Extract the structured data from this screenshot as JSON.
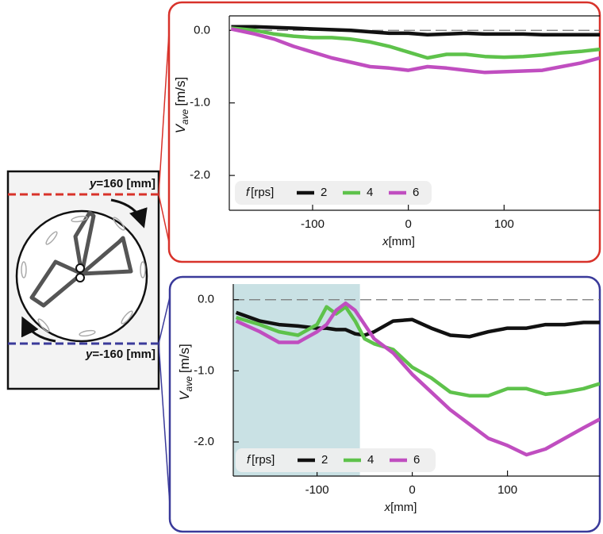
{
  "diagram": {
    "top_label": [
      "y",
      "=160 [mm]"
    ],
    "bottom_label": [
      "y",
      "=-160 [mm]"
    ]
  },
  "chart_data": [
    {
      "type": "line",
      "frame_color": "#d8322a",
      "ylabel": "V",
      "ylabel_sub": "ave",
      "ylabel_unit": "[m/s]",
      "xlabel": "x",
      "xlabel_unit": "[mm]",
      "legend_title": "f",
      "legend_unit": "[rps]",
      "x": [
        -185,
        -160,
        -140,
        -120,
        -100,
        -80,
        -60,
        -40,
        -20,
        0,
        20,
        40,
        60,
        80,
        100,
        120,
        140,
        160,
        180,
        200
      ],
      "series": [
        {
          "name": "2",
          "color": "#111111",
          "values": [
            0.05,
            0.05,
            0.04,
            0.03,
            0.02,
            0.01,
            0.0,
            -0.02,
            -0.04,
            -0.04,
            -0.06,
            -0.05,
            -0.04,
            -0.05,
            -0.05,
            -0.05,
            -0.06,
            -0.06,
            -0.06,
            -0.06
          ]
        },
        {
          "name": "4",
          "color": "#5ec24b",
          "values": [
            0.03,
            0.0,
            -0.05,
            -0.08,
            -0.1,
            -0.1,
            -0.12,
            -0.16,
            -0.22,
            -0.3,
            -0.38,
            -0.33,
            -0.33,
            -0.36,
            -0.37,
            -0.36,
            -0.34,
            -0.31,
            -0.29,
            -0.26
          ]
        },
        {
          "name": "6",
          "color": "#c04ec0",
          "values": [
            0.02,
            -0.05,
            -0.12,
            -0.22,
            -0.3,
            -0.38,
            -0.44,
            -0.5,
            -0.52,
            -0.55,
            -0.5,
            -0.52,
            -0.55,
            -0.58,
            -0.57,
            -0.56,
            -0.55,
            -0.5,
            -0.45,
            -0.38
          ]
        }
      ],
      "xlim": [
        -187,
        200
      ],
      "ylim": [
        -2.48,
        0.2
      ],
      "xticks": [
        -100,
        0,
        100
      ],
      "yticks": [
        {
          "value": 0,
          "label": "0.0"
        },
        {
          "value": -1,
          "label": "-1.0"
        },
        {
          "value": -2,
          "label": "-2.0"
        }
      ],
      "hline": 0
    },
    {
      "type": "line",
      "frame_color": "#3a3a9a",
      "ylabel": "V",
      "ylabel_sub": "ave",
      "ylabel_unit": "[m/s]",
      "xlabel": "x",
      "xlabel_unit": "[mm]",
      "legend_title": "f",
      "legend_unit": "[rps]",
      "x": [
        -185,
        -160,
        -140,
        -120,
        -100,
        -90,
        -80,
        -70,
        -60,
        -50,
        -40,
        -20,
        0,
        20,
        40,
        60,
        80,
        100,
        120,
        140,
        160,
        180,
        197
      ],
      "series": [
        {
          "name": "2",
          "color": "#111111",
          "values": [
            -0.18,
            -0.3,
            -0.35,
            -0.37,
            -0.4,
            -0.4,
            -0.42,
            -0.42,
            -0.48,
            -0.5,
            -0.45,
            -0.3,
            -0.28,
            -0.4,
            -0.5,
            -0.52,
            -0.45,
            -0.4,
            -0.4,
            -0.35,
            -0.35,
            -0.32,
            -0.32
          ]
        },
        {
          "name": "4",
          "color": "#5ec24b",
          "values": [
            -0.25,
            -0.35,
            -0.45,
            -0.5,
            -0.35,
            -0.1,
            -0.2,
            -0.1,
            -0.3,
            -0.55,
            -0.62,
            -0.7,
            -0.95,
            -1.1,
            -1.3,
            -1.35,
            -1.35,
            -1.25,
            -1.25,
            -1.33,
            -1.3,
            -1.25,
            -1.18
          ]
        },
        {
          "name": "6",
          "color": "#c04ec0",
          "values": [
            -0.3,
            -0.45,
            -0.6,
            -0.6,
            -0.45,
            -0.35,
            -0.15,
            -0.05,
            -0.15,
            -0.35,
            -0.55,
            -0.75,
            -1.05,
            -1.3,
            -1.55,
            -1.75,
            -1.95,
            -2.05,
            -2.18,
            -2.1,
            -1.95,
            -1.8,
            -1.68
          ]
        }
      ],
      "xlim": [
        -188,
        197
      ],
      "ylim": [
        -2.48,
        0.22
      ],
      "xticks": [
        -100,
        0,
        100
      ],
      "yticks": [
        {
          "value": 0,
          "label": "0.0"
        },
        {
          "value": -1,
          "label": "-1.0"
        },
        {
          "value": -2,
          "label": "-2.0"
        }
      ],
      "hline": 0,
      "shaded_x": [
        -188,
        -55
      ],
      "shade_color": "#c9e1e4"
    }
  ]
}
